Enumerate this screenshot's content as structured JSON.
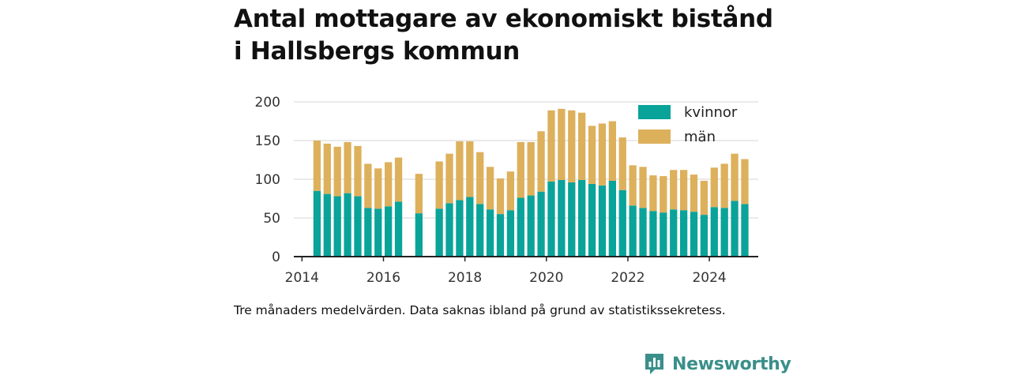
{
  "header": {
    "title_line1": "Antal mottagare av ekonomiskt bistånd",
    "title_line2": "i Hallsbergs kommun"
  },
  "footer": {
    "caption": "Tre månaders medelvärden. Data saknas ibland på grund av statistikssekretess.",
    "brand": "Newsworthy",
    "brand_logo_icon": "bar-chart-speech-bubble-icon"
  },
  "colors": {
    "kvinnor": "#0aa39a",
    "man": "#ddb05c",
    "grid": "#dddddd",
    "axis": "#222222",
    "brand": "#3a8f8a"
  },
  "chart_data": {
    "type": "bar",
    "stacked": true,
    "x_unit": "year (quarter midpoints)",
    "x": [
      2014.37,
      2014.62,
      2014.87,
      2015.12,
      2015.37,
      2015.62,
      2015.87,
      2016.12,
      2016.37,
      2016.87,
      2017.37,
      2017.62,
      2017.87,
      2018.12,
      2018.37,
      2018.62,
      2018.87,
      2019.12,
      2019.37,
      2019.62,
      2019.87,
      2020.12,
      2020.37,
      2020.62,
      2020.87,
      2021.12,
      2021.37,
      2021.62,
      2021.87,
      2022.12,
      2022.37,
      2022.62,
      2022.87,
      2023.12,
      2023.37,
      2023.62,
      2023.87,
      2024.12,
      2024.37,
      2024.62,
      2024.87
    ],
    "series": [
      {
        "name": "kvinnor",
        "values": [
          85,
          81,
          78,
          82,
          78,
          63,
          62,
          65,
          71,
          56,
          62,
          69,
          73,
          77,
          68,
          61,
          55,
          60,
          76,
          79,
          84,
          97,
          99,
          96,
          99,
          94,
          92,
          98,
          86,
          66,
          63,
          59,
          57,
          61,
          60,
          58,
          54,
          64,
          63,
          72,
          68
        ]
      },
      {
        "name": "män",
        "values": [
          65,
          65,
          64,
          66,
          65,
          57,
          52,
          57,
          57,
          51,
          61,
          64,
          76,
          72,
          67,
          55,
          46,
          50,
          72,
          69,
          78,
          92,
          92,
          93,
          87,
          75,
          80,
          77,
          68,
          52,
          53,
          46,
          47,
          51,
          52,
          48,
          44,
          51,
          57,
          61,
          58
        ]
      }
    ],
    "x_ticks": [
      "2014",
      "2016",
      "2018",
      "2020",
      "2022",
      "2024"
    ],
    "x_tick_values": [
      2014,
      2016,
      2018,
      2020,
      2022,
      2024
    ],
    "y_ticks": [
      "0",
      "50",
      "100",
      "150",
      "200"
    ],
    "y_tick_values": [
      0,
      50,
      100,
      150,
      200
    ],
    "xlim": [
      2013.8,
      2025.2
    ],
    "ylim": [
      0,
      200
    ],
    "grid": true,
    "legend": {
      "position": "top-right",
      "entries": [
        "kvinnor",
        "män"
      ]
    }
  }
}
